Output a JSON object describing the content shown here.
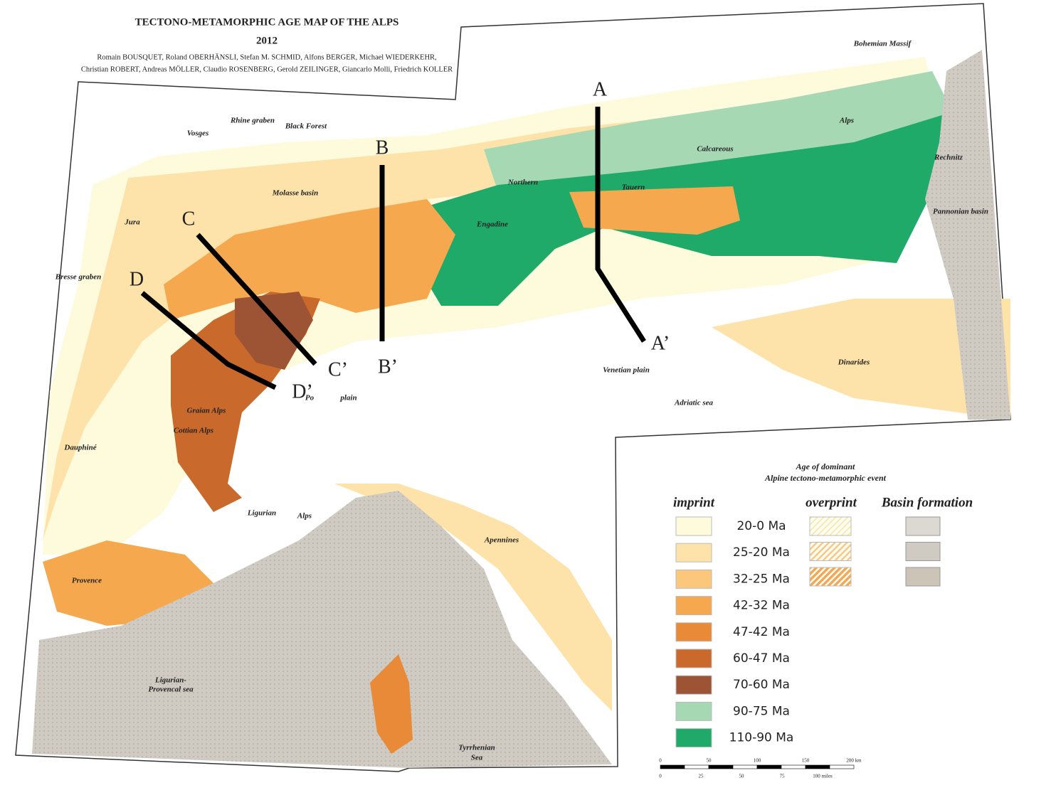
{
  "header": {
    "title": "TECTONO-METAMORPHIC  AGE MAP OF THE ALPS",
    "year": "2012",
    "authors": [
      "Romain BOUSQUET,  Roland OBERHÄNSLI, Stefan M. SCHMID, Alfons BERGER, Michael WIEDERKEHR,",
      "Christian ROBERT, Andreas MÖLLER, Claudio ROSENBERG, Gerold ZEILINGER, Giancarlo Molli, Friedrich KOLLER"
    ]
  },
  "sections": [
    {
      "start": "A",
      "end": "A’"
    },
    {
      "start": "B",
      "end": "B’"
    },
    {
      "start": "C",
      "end": "C’"
    },
    {
      "start": "D",
      "end": "D’"
    }
  ],
  "places": [
    "Vosges",
    "Rhine graben",
    "Black Forest",
    "Molasse basin",
    "Jura",
    "Bresse graben",
    "Bohemian Massif",
    "Northern",
    "Calcareous",
    "Alps",
    "Tauern",
    "Engadine",
    "Pannonian basin",
    "Rechnitz",
    "Dinarides",
    "Venetian plain",
    "Adriatic sea",
    "Po",
    "plain",
    "Dauphiné",
    "Provence",
    "Ligurian",
    "Alps",
    "Ligurian-",
    "Provencal sea",
    "Tyrrhenian",
    "Sea",
    "Apennines",
    "Cottian Alps",
    "Graian Alps"
  ],
  "legend": {
    "title": [
      "Age of dominant",
      "Alpine tectono-metamorphic event"
    ],
    "columns": [
      "imprint",
      "overprint",
      "Basin formation"
    ],
    "imprint": [
      {
        "label": "20-0 Ma",
        "color": "#fefbdc"
      },
      {
        "label": "25-20 Ma",
        "color": "#fde3a9"
      },
      {
        "label": "32-25 Ma",
        "color": "#fbc77a"
      },
      {
        "label": "42-32 Ma",
        "color": "#f6a84e"
      },
      {
        "label": "47-42 Ma",
        "color": "#e98a38"
      },
      {
        "label": "60-47 Ma",
        "color": "#c96a2c"
      },
      {
        "label": "70-60 Ma",
        "color": "#9c5434"
      },
      {
        "label": "90-75 Ma",
        "color": "#a6d8b4"
      },
      {
        "label": "110-90 Ma",
        "color": "#1faa6a"
      }
    ],
    "overprint": [
      "#f3e6a8",
      "#f6c98a",
      "#f0a85a"
    ],
    "basin": [
      "#dcd8d2",
      "#cfcac2",
      "#cdc4b8"
    ]
  },
  "scale": {
    "km": [
      "0",
      "50",
      "100",
      "150",
      "200 km"
    ],
    "miles": [
      "0",
      "25",
      "50",
      "75",
      "100 miles"
    ]
  }
}
